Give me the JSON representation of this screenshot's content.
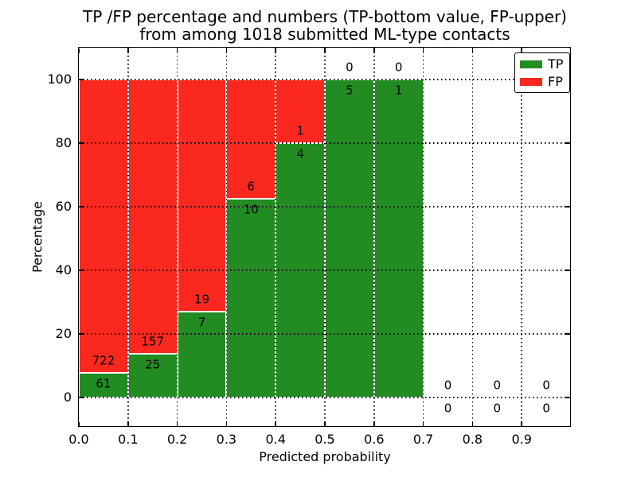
{
  "title": {
    "line1": "TP /FP percentage and numbers (TP-bottom value, FP-upper)",
    "line2": "from among 1018 submitted ML-type contacts"
  },
  "axes": {
    "xlabel": "Predicted probability",
    "ylabel": "Percentage"
  },
  "legend": {
    "items": [
      {
        "label": "TP",
        "color": "#228b22"
      },
      {
        "label": "FP",
        "color": "#fa281e"
      }
    ]
  },
  "colors": {
    "tp": "#228b22",
    "fp": "#fa281e",
    "bar_edge": "#ffffff",
    "grid": "#000000",
    "background": "#ffffff"
  },
  "chart_data": {
    "type": "bar",
    "stacked": true,
    "title": "TP /FP percentage and numbers (TP-bottom value, FP-upper) from among 1018 submitted ML-type contacts",
    "xlabel": "Predicted probability",
    "ylabel": "Percentage",
    "xlim": [
      0.0,
      1.0
    ],
    "ylim": [
      -9,
      110
    ],
    "xticks": [
      "0.0",
      "0.1",
      "0.2",
      "0.3",
      "0.4",
      "0.5",
      "0.6",
      "0.7",
      "0.8",
      "0.9"
    ],
    "yticks": [
      0,
      20,
      40,
      60,
      80,
      100
    ],
    "grid": "dotted",
    "legend_position": "upper right",
    "total_contacts": 1018,
    "series": [
      {
        "name": "TP",
        "color": "#228b22"
      },
      {
        "name": "FP",
        "color": "#fa281e"
      }
    ],
    "bins": [
      {
        "range": [
          0.0,
          0.1
        ],
        "tp": 61,
        "fp": 722,
        "tp_pct": 7.8,
        "fp_pct": 92.2
      },
      {
        "range": [
          0.1,
          0.2
        ],
        "tp": 25,
        "fp": 157,
        "tp_pct": 13.7,
        "fp_pct": 86.3
      },
      {
        "range": [
          0.2,
          0.3
        ],
        "tp": 7,
        "fp": 19,
        "tp_pct": 26.9,
        "fp_pct": 73.1
      },
      {
        "range": [
          0.3,
          0.4
        ],
        "tp": 10,
        "fp": 6,
        "tp_pct": 62.5,
        "fp_pct": 37.5
      },
      {
        "range": [
          0.4,
          0.5
        ],
        "tp": 4,
        "fp": 1,
        "tp_pct": 80.0,
        "fp_pct": 20.0
      },
      {
        "range": [
          0.5,
          0.6
        ],
        "tp": 5,
        "fp": 0,
        "tp_pct": 100.0,
        "fp_pct": 0.0
      },
      {
        "range": [
          0.6,
          0.7
        ],
        "tp": 1,
        "fp": 0,
        "tp_pct": 100.0,
        "fp_pct": 0.0
      },
      {
        "range": [
          0.7,
          0.8
        ],
        "tp": 0,
        "fp": 0,
        "tp_pct": null,
        "fp_pct": null
      },
      {
        "range": [
          0.8,
          0.9
        ],
        "tp": 0,
        "fp": 0,
        "tp_pct": null,
        "fp_pct": null
      },
      {
        "range": [
          0.9,
          1.0
        ],
        "tp": 0,
        "fp": 0,
        "tp_pct": null,
        "fp_pct": null
      }
    ]
  }
}
